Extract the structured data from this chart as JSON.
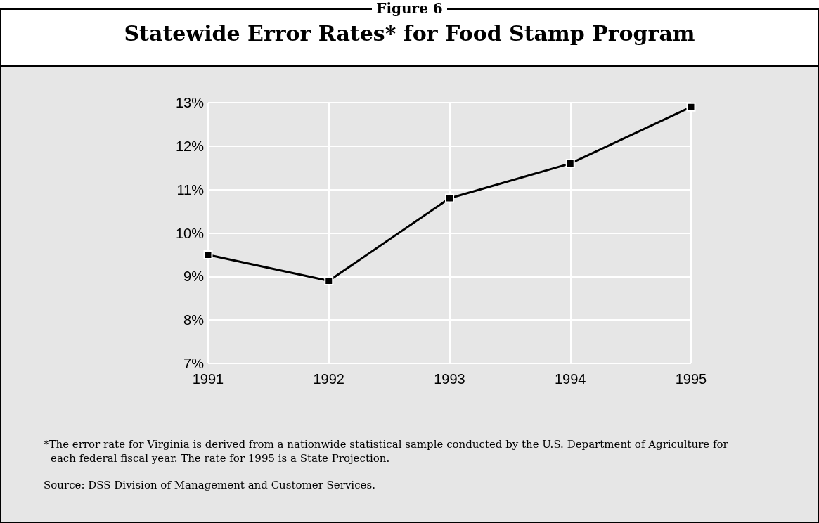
{
  "chart_data": {
    "type": "line",
    "subtitle": "Figure 6",
    "title": "Statewide Error Rates* for Food Stamp Program",
    "categories": [
      "1991",
      "1992",
      "1993",
      "1994",
      "1995"
    ],
    "series": [
      {
        "color": "#000000",
        "values": [
          9.5,
          8.9,
          10.8,
          11.6,
          12.9
        ]
      }
    ],
    "ylim": [
      7,
      13
    ],
    "yticks": [
      {
        "value": 7,
        "label": "7%"
      },
      {
        "value": 8,
        "label": "8%"
      },
      {
        "value": 9,
        "label": "9%"
      },
      {
        "value": 10,
        "label": "10%"
      },
      {
        "value": 11,
        "label": "11%"
      },
      {
        "value": 12,
        "label": "12%"
      },
      {
        "value": 13,
        "label": "13%"
      }
    ],
    "grid": true,
    "marker": "square",
    "line_style": "solid",
    "annotations": [
      "*The error rate for Virginia is derived from a nationwide statistical sample conducted by the U.S. Department of Agriculture for each federal fiscal year.  The rate for 1995 is a State Projection.",
      "Source:  DSS Division of Management and Customer Services."
    ]
  }
}
